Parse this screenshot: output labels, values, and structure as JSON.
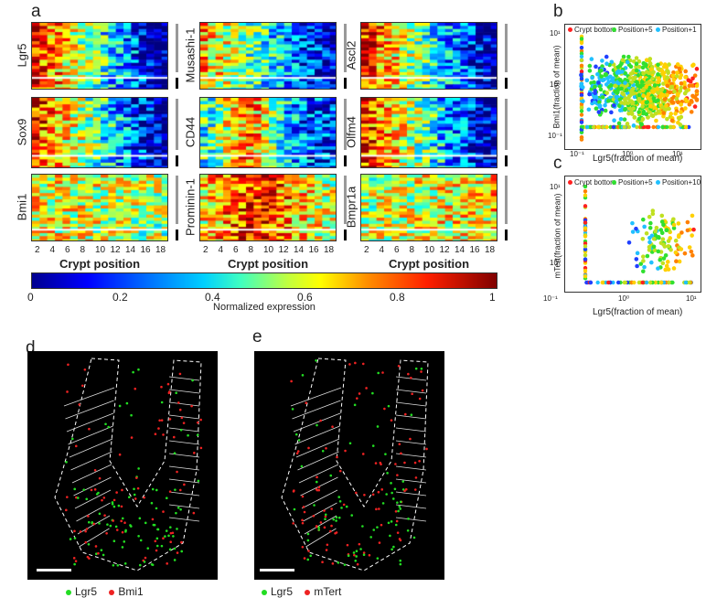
{
  "panels": {
    "a": "a",
    "b": "b",
    "c": "c",
    "d": "d",
    "e": "e"
  },
  "heatmap": {
    "genes": [
      "Lgr5",
      "Musashi-1",
      "Ascl2",
      "Sox9",
      "CD44",
      "Olfm4",
      "Bmi1",
      "Prominin-1",
      "Bmpr1a"
    ],
    "x_ticks": [
      "2",
      "4",
      "6",
      "8",
      "10",
      "12",
      "14",
      "16",
      "18"
    ],
    "x_label": "Crypt position",
    "colorbar_ticks": [
      "0",
      "0.2",
      "0.4",
      "0.6",
      "0.8",
      "1"
    ],
    "colorbar_label": "Normalized expression",
    "colors": [
      "#00008f",
      "#0000ff",
      "#00a0ff",
      "#40ffbf",
      "#ffff00",
      "#ff8000",
      "#ff0000",
      "#800000"
    ]
  },
  "chart_data": [
    {
      "type": "scatter",
      "panel": "b",
      "xlabel": "Lgr5(fraction of mean)",
      "ylabel": "Bmi1(fraction of mean)",
      "x_ticks": [
        "10⁻¹",
        "10⁰",
        "10¹"
      ],
      "y_ticks": [
        "10¹",
        "10⁰",
        "10⁻¹"
      ],
      "legend": [
        {
          "name": "Crypt bottom",
          "color": "#ff2020"
        },
        {
          "name": "Position+5",
          "color": "#30e030"
        },
        {
          "name": "Position+1",
          "color": "#20c0ff"
        }
      ]
    },
    {
      "type": "scatter",
      "panel": "c",
      "xlabel": "Lgr5(fraction of mean)",
      "ylabel": "mTert(fraction of mean)",
      "x_ticks": [
        "10⁻¹",
        "10⁰",
        "10¹"
      ],
      "y_ticks": [
        "10¹",
        "10⁰"
      ],
      "legend": [
        {
          "name": "Crypt bottom",
          "color": "#ff2020"
        },
        {
          "name": "Position+5",
          "color": "#30e030"
        },
        {
          "name": "Position+10",
          "color": "#20c0ff"
        }
      ]
    }
  ],
  "images": {
    "d_legend": [
      {
        "name": "Lgr5",
        "color": "#22dd22"
      },
      {
        "name": "Bmi1",
        "color": "#ee2222"
      }
    ],
    "e_legend": [
      {
        "name": "Lgr5",
        "color": "#22dd22"
      },
      {
        "name": "mTert",
        "color": "#ee2222"
      }
    ]
  }
}
